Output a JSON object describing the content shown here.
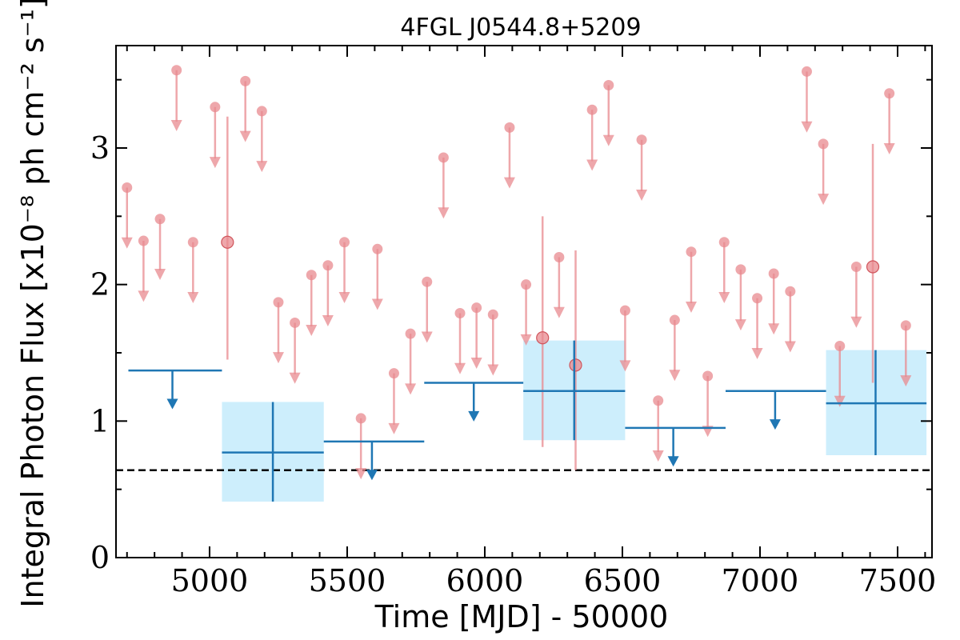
{
  "chart_data": {
    "type": "scatter",
    "title": "4FGL J0544.8+5209",
    "xlabel": "Time [MJD] - 50000",
    "ylabel": "Integral Photon Flux [x10⁻⁸ ph cm⁻² s⁻¹]",
    "xlim": [
      4660,
      7625
    ],
    "ylim": [
      0,
      3.75
    ],
    "x_ticks": [
      5000,
      5500,
      6000,
      6500,
      7000,
      7500
    ],
    "y_ticks": [
      0,
      1,
      2,
      3
    ],
    "grid": false,
    "reference_line": {
      "y": 0.64,
      "style": "dashed",
      "color": "#000000"
    },
    "colors": {
      "short_bins": "#e88a8f",
      "long_bins": "#1f77b4",
      "long_bin_box": "#cdeefc"
    },
    "short_bins_upper_limits": [
      {
        "x": 4700,
        "y": 2.71
      },
      {
        "x": 4760,
        "y": 2.32
      },
      {
        "x": 4820,
        "y": 2.48
      },
      {
        "x": 4880,
        "y": 3.57
      },
      {
        "x": 4940,
        "y": 2.31
      },
      {
        "x": 5020,
        "y": 3.3
      },
      {
        "x": 5130,
        "y": 3.49
      },
      {
        "x": 5190,
        "y": 3.27
      },
      {
        "x": 5250,
        "y": 1.87
      },
      {
        "x": 5310,
        "y": 1.72
      },
      {
        "x": 5370,
        "y": 2.07
      },
      {
        "x": 5430,
        "y": 2.14
      },
      {
        "x": 5490,
        "y": 2.31
      },
      {
        "x": 5550,
        "y": 1.02
      },
      {
        "x": 5610,
        "y": 2.26
      },
      {
        "x": 5670,
        "y": 1.35
      },
      {
        "x": 5730,
        "y": 1.64
      },
      {
        "x": 5790,
        "y": 2.02
      },
      {
        "x": 5850,
        "y": 2.93
      },
      {
        "x": 5910,
        "y": 1.79
      },
      {
        "x": 5970,
        "y": 1.83
      },
      {
        "x": 6030,
        "y": 1.78
      },
      {
        "x": 6090,
        "y": 3.15
      },
      {
        "x": 6150,
        "y": 2.0
      },
      {
        "x": 6270,
        "y": 2.2
      },
      {
        "x": 6390,
        "y": 3.28
      },
      {
        "x": 6450,
        "y": 3.46
      },
      {
        "x": 6510,
        "y": 1.81
      },
      {
        "x": 6570,
        "y": 3.06
      },
      {
        "x": 6630,
        "y": 1.15
      },
      {
        "x": 6690,
        "y": 1.74
      },
      {
        "x": 6750,
        "y": 2.24
      },
      {
        "x": 6810,
        "y": 1.33
      },
      {
        "x": 6870,
        "y": 2.31
      },
      {
        "x": 6930,
        "y": 2.11
      },
      {
        "x": 6990,
        "y": 1.9
      },
      {
        "x": 7050,
        "y": 2.08
      },
      {
        "x": 7110,
        "y": 1.95
      },
      {
        "x": 7170,
        "y": 3.56
      },
      {
        "x": 7230,
        "y": 3.03
      },
      {
        "x": 7290,
        "y": 1.55
      },
      {
        "x": 7350,
        "y": 2.13
      },
      {
        "x": 7470,
        "y": 3.4
      },
      {
        "x": 7530,
        "y": 1.7
      }
    ],
    "short_bins_detections": [
      {
        "x": 5065,
        "y": 2.31,
        "ylow": 1.45,
        "yhigh": 3.23
      },
      {
        "x": 6210,
        "y": 1.61,
        "ylow": 0.81,
        "yhigh": 2.5
      },
      {
        "x": 6330,
        "y": 1.41,
        "ylow": 0.64,
        "yhigh": 2.25
      },
      {
        "x": 7410,
        "y": 2.13,
        "ylow": 1.28,
        "yhigh": 3.03
      }
    ],
    "long_bins_upper_limits": [
      {
        "x": 4865,
        "xlow": 4705,
        "xhigh": 5045,
        "y": 1.37
      },
      {
        "x": 5590,
        "xlow": 5415,
        "xhigh": 5780,
        "y": 0.85
      },
      {
        "x": 5960,
        "xlow": 5780,
        "xhigh": 6140,
        "y": 1.28
      },
      {
        "x": 6685,
        "xlow": 6510,
        "xhigh": 6875,
        "y": 0.95
      },
      {
        "x": 7055,
        "xlow": 6875,
        "xhigh": 7240,
        "y": 1.22
      }
    ],
    "long_bins_detections": [
      {
        "x": 5230,
        "xlow": 5045,
        "xhigh": 5415,
        "y": 0.77,
        "ylow": 0.41,
        "yhigh": 1.14
      },
      {
        "x": 6325,
        "xlow": 6140,
        "xhigh": 6510,
        "y": 1.22,
        "ylow": 0.86,
        "yhigh": 1.59
      },
      {
        "x": 7420,
        "xlow": 7240,
        "xhigh": 7605,
        "y": 1.13,
        "ylow": 0.75,
        "yhigh": 1.52
      }
    ]
  }
}
